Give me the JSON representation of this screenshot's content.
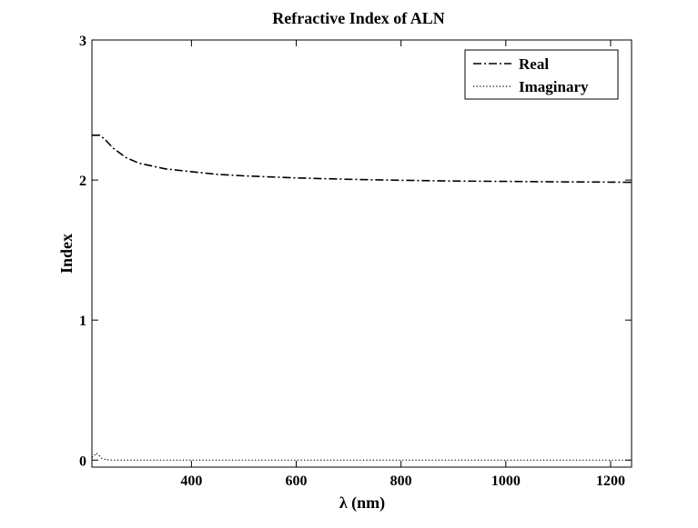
{
  "chart_data": {
    "type": "line",
    "title": "Refractive Index of ALN",
    "xlabel": "λ (nm)",
    "ylabel": "Index",
    "xlim": [
      210,
      1240
    ],
    "ylim": [
      -0.05,
      3
    ],
    "xticks": [
      400,
      600,
      800,
      1000,
      1200
    ],
    "xtick_labels": [
      "400",
      "600",
      "800",
      "1000",
      "1200"
    ],
    "yticks": [
      0,
      1,
      2,
      3
    ],
    "ytick_labels": [
      "0",
      "1",
      "2",
      "3"
    ],
    "grid": false,
    "legend_position": "top-right",
    "series": [
      {
        "name": "Real",
        "line_style": "dash-dot",
        "color": "#000000",
        "x": [
          210,
          225,
          235,
          250,
          275,
          300,
          350,
          400,
          450,
          500,
          600,
          700,
          800,
          900,
          1000,
          1100,
          1200,
          1240
        ],
        "y": [
          2.32,
          2.32,
          2.29,
          2.23,
          2.16,
          2.12,
          2.08,
          2.06,
          2.04,
          2.03,
          2.015,
          2.005,
          1.998,
          1.993,
          1.99,
          1.987,
          1.985,
          1.984
        ]
      },
      {
        "name": "Imaginary",
        "line_style": "dotted",
        "color": "#000000",
        "x": [
          210,
          214,
          218,
          222,
          228,
          235,
          250,
          300,
          400,
          600,
          800,
          1000,
          1200,
          1240
        ],
        "y": [
          0.02,
          0.03,
          0.05,
          0.04,
          0.015,
          0.005,
          0.0,
          0.0,
          0.0,
          0.0,
          0.0,
          0.0,
          0.0,
          0.0
        ]
      }
    ]
  }
}
